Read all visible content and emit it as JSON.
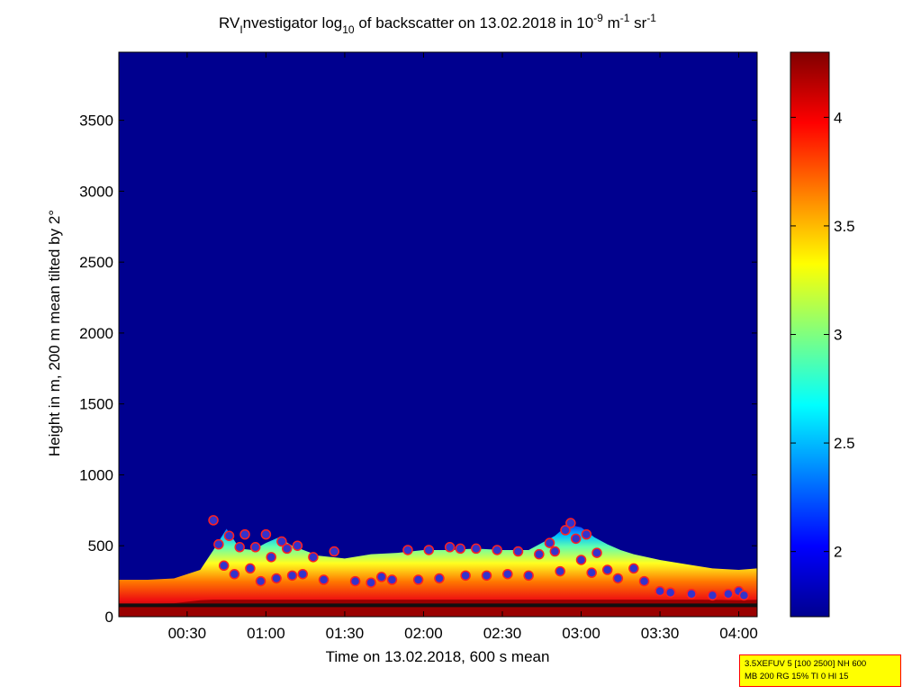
{
  "chart_data": {
    "type": "heatmap",
    "title": {
      "prefix": "RV",
      "sub1": "I",
      "part1": "nvestigator log",
      "sub2": "10",
      "part2": " of backscatter on 13.02.2018 in 10",
      "sup1": "-9",
      "part3": " m",
      "sup2": "-1",
      "part4": " sr",
      "sup3": "-1"
    },
    "xlabel": "Time on 13.02.2018, 600 s mean",
    "ylabel": "Height in m, 200 m mean tilted by 2°",
    "x_ticks": [
      "00:30",
      "01:00",
      "01:30",
      "02:00",
      "02:30",
      "03:00",
      "03:30",
      "04:00"
    ],
    "x_tick_minutes": [
      30,
      60,
      90,
      120,
      150,
      180,
      210,
      240
    ],
    "xlim_minutes": [
      4,
      247
    ],
    "y_ticks": [
      "0",
      "500",
      "1000",
      "1500",
      "2000",
      "2500",
      "3000",
      "3500"
    ],
    "y_tick_values": [
      0,
      500,
      1000,
      1500,
      2000,
      2500,
      3000,
      3500
    ],
    "ylim": [
      0,
      3980
    ],
    "colorbar": {
      "ticks": [
        "2",
        "2.5",
        "3",
        "3.5",
        "4"
      ],
      "tick_values": [
        2,
        2.5,
        3,
        3.5,
        4
      ],
      "range": [
        1.7,
        4.3
      ],
      "colormap": "jet"
    },
    "background_color": "#00008f",
    "layer_top_profile": {
      "minutes": [
        4,
        15,
        25,
        35,
        40,
        45,
        50,
        55,
        60,
        65,
        70,
        80,
        90,
        100,
        110,
        120,
        130,
        140,
        150,
        160,
        170,
        175,
        180,
        185,
        190,
        195,
        200,
        210,
        220,
        230,
        240,
        247
      ],
      "height_m": [
        260,
        260,
        270,
        330,
        470,
        620,
        480,
        470,
        520,
        560,
        500,
        430,
        410,
        440,
        450,
        470,
        470,
        480,
        470,
        470,
        570,
        650,
        630,
        560,
        510,
        470,
        440,
        400,
        370,
        340,
        330,
        340
      ]
    },
    "marker_series": {
      "name": "",
      "marker": "circle",
      "face_color": "#3333cc",
      "edge_color": "#ff2020",
      "points_minutes": [
        40,
        42,
        44,
        46,
        48,
        50,
        52,
        54,
        56,
        58,
        60,
        62,
        64,
        66,
        68,
        70,
        72,
        74,
        78,
        82,
        86,
        94,
        100,
        104,
        108,
        114,
        118,
        122,
        126,
        130,
        134,
        136,
        140,
        144,
        148,
        152,
        156,
        160,
        164,
        168,
        170,
        172,
        174,
        176,
        178,
        180,
        182,
        184,
        186,
        190,
        194,
        200,
        204,
        210,
        214,
        222,
        230,
        236,
        240,
        242
      ],
      "points_height_m": [
        680,
        510,
        360,
        570,
        300,
        490,
        580,
        340,
        490,
        250,
        580,
        420,
        270,
        530,
        480,
        290,
        500,
        300,
        420,
        260,
        460,
        250,
        240,
        280,
        260,
        470,
        260,
        470,
        270,
        490,
        480,
        290,
        480,
        290,
        470,
        300,
        460,
        290,
        440,
        520,
        460,
        320,
        610,
        660,
        550,
        400,
        580,
        310,
        450,
        330,
        270,
        340,
        250,
        180,
        170,
        160,
        150,
        160,
        180,
        150
      ]
    }
  },
  "info_box": {
    "line1": "3.5XEFUV 5 [100 2500] NH 600",
    "line2": "MB 200 RG 15% TI 0 HI 15"
  }
}
